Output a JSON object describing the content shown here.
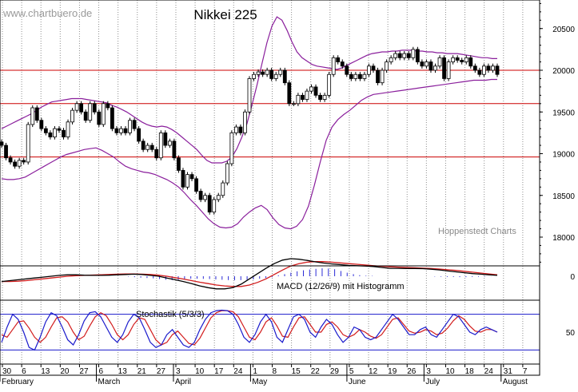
{
  "watermark": "www.chartbuero.de",
  "credit": "Hoppenstedt Charts",
  "chart_data": [
    {
      "type": "candlestick",
      "title": "Nikkei 225",
      "ylim": [
        17600,
        20900
      ],
      "yticks": [
        18000,
        18500,
        19000,
        19500,
        20000,
        20500
      ],
      "horizontal_lines": [
        20000,
        19600,
        18960
      ],
      "x_day_labels": [
        "30",
        "6",
        "13",
        "20",
        "27",
        "6",
        "13",
        "21",
        "27",
        "3",
        "10",
        "17",
        "24",
        "1",
        "8",
        "15",
        "22",
        "29",
        "5",
        "12",
        "19",
        "26",
        "3",
        "10",
        "18",
        "24",
        "31",
        "7"
      ],
      "x_month_labels": [
        "February",
        "March",
        "April",
        "May",
        "June",
        "July",
        "August"
      ],
      "series": [
        {
          "name": "Close",
          "values": [
            19100,
            18950,
            18900,
            18850,
            18920,
            18900,
            19350,
            19550,
            19400,
            19300,
            19250,
            19200,
            19300,
            19280,
            19200,
            19380,
            19520,
            19600,
            19500,
            19400,
            19600,
            19500,
            19350,
            19600,
            19550,
            19300,
            19250,
            19300,
            19250,
            19400,
            19300,
            19150,
            19050,
            19100,
            19050,
            18950,
            19250,
            19100,
            19150,
            18950,
            18800,
            18600,
            18750,
            18700,
            18550,
            18450,
            18500,
            18300,
            18450,
            18500,
            18650,
            18880,
            19250,
            19320,
            19250,
            19500,
            19900,
            19950,
            19980,
            19950,
            20000,
            19900,
            19950,
            20000,
            19850,
            19600,
            19600,
            19700,
            19650,
            19750,
            19800,
            19700,
            19650,
            19700,
            19950,
            20150,
            20100,
            20050,
            19950,
            19900,
            19950,
            19900,
            19950,
            20050,
            20000,
            19850,
            20000,
            20100,
            20150,
            20200,
            20150,
            20200,
            20150,
            20250,
            20100,
            20050,
            20100,
            20000,
            20050,
            20150,
            19900,
            20100,
            20150,
            20120,
            20100,
            20150,
            20050,
            20000,
            19950,
            20050,
            20000,
            20050,
            19950
          ]
        },
        {
          "name": "Bollinger upper",
          "values": [
            19300,
            19330,
            19360,
            19390,
            19420,
            19450,
            19480,
            19520,
            19560,
            19590,
            19620,
            19630,
            19640,
            19650,
            19660,
            19660,
            19660,
            19650,
            19640,
            19630,
            19620,
            19610,
            19580,
            19560,
            19530,
            19500,
            19460,
            19420,
            19380,
            19350,
            19330,
            19320,
            19330,
            19320,
            19290,
            19250,
            19200,
            19150,
            19100,
            19050,
            18980,
            18920,
            18890,
            18890,
            18890,
            18910,
            18960,
            19060,
            19200,
            19360,
            19580,
            19820,
            20080,
            20330,
            20530,
            20640,
            20600,
            20480,
            20340,
            20220,
            20150,
            20110,
            20070,
            20050,
            20040,
            20030,
            20020,
            20010,
            20030,
            20060,
            20090,
            20120,
            20150,
            20180,
            20200,
            20210,
            20220,
            20220,
            20230,
            20230,
            20240,
            20240,
            20240,
            20230,
            20230,
            20220,
            20220,
            20210,
            20210,
            20200,
            20200,
            20200,
            20190,
            20180,
            20170,
            20160,
            20150,
            20150,
            20140,
            20140
          ]
        },
        {
          "name": "Bollinger lower",
          "values": [
            18700,
            18690,
            18690,
            18700,
            18720,
            18760,
            18800,
            18840,
            18880,
            18920,
            18960,
            18990,
            19010,
            19030,
            19050,
            19060,
            19070,
            19040,
            19000,
            18960,
            18900,
            18850,
            18820,
            18800,
            18780,
            18770,
            18750,
            18720,
            18690,
            18650,
            18600,
            18530,
            18450,
            18380,
            18300,
            18220,
            18160,
            18120,
            18110,
            18120,
            18160,
            18240,
            18300,
            18350,
            18380,
            18330,
            18230,
            18150,
            18110,
            18100,
            18130,
            18210,
            18370,
            18620,
            18900,
            19160,
            19320,
            19410,
            19470,
            19520,
            19580,
            19640,
            19680,
            19710,
            19720,
            19730,
            19740,
            19750,
            19760,
            19770,
            19780,
            19790,
            19800,
            19810,
            19820,
            19830,
            19840,
            19850,
            19860,
            19870,
            19880,
            19880,
            19880,
            19890,
            19890
          ]
        },
        {
          "name": "MACD",
          "values": [
            -0.3,
            -0.25,
            -0.2,
            -0.15,
            -0.1,
            -0.05,
            0.0,
            0.05,
            0.08,
            0.08,
            0.06,
            0.05,
            0.05,
            0.06,
            0.08,
            0.1,
            0.12,
            0.1,
            0.05,
            0.0,
            -0.1,
            -0.2,
            -0.3,
            -0.42,
            -0.55,
            -0.65,
            -0.72,
            -0.72,
            -0.65,
            -0.45,
            -0.15,
            0.15,
            0.45,
            0.72,
            0.92,
            1.0,
            0.97,
            0.9,
            0.82,
            0.75,
            0.7,
            0.66,
            0.62,
            0.6,
            0.58,
            0.55,
            0.5,
            0.45,
            0.45,
            0.44,
            0.44,
            0.43,
            0.4,
            0.36,
            0.3,
            0.25,
            0.2,
            0.15,
            0.12,
            0.08,
            0.05
          ]
        },
        {
          "name": "MACD signal",
          "values": [
            -0.3,
            -0.3,
            -0.28,
            -0.25,
            -0.2,
            -0.15,
            -0.1,
            -0.05,
            0.0,
            0.03,
            0.05,
            0.07,
            0.08,
            0.1,
            0.12,
            0.13,
            0.13,
            0.12,
            0.1,
            0.06,
            0.0,
            -0.08,
            -0.16,
            -0.25,
            -0.34,
            -0.42,
            -0.5,
            -0.55,
            -0.58,
            -0.58,
            -0.5,
            -0.35,
            -0.15,
            0.1,
            0.35,
            0.58,
            0.72,
            0.8,
            0.83,
            0.83,
            0.8,
            0.76,
            0.72,
            0.68,
            0.64,
            0.6,
            0.57,
            0.54,
            0.52,
            0.5,
            0.48,
            0.46,
            0.44,
            0.41,
            0.37,
            0.33,
            0.28,
            0.23,
            0.18,
            0.13,
            0.08
          ]
        },
        {
          "name": "MACD histogram",
          "values": [
            0,
            0,
            0,
            0,
            0,
            0,
            0,
            0,
            0,
            0,
            0,
            0,
            0,
            0,
            0,
            0,
            0,
            0,
            0,
            0,
            -0.02,
            -0.05,
            -0.08,
            -0.1,
            -0.12,
            -0.16,
            -0.2,
            -0.22,
            -0.2,
            -0.17,
            -0.14,
            -0.14,
            -0.15,
            -0.16,
            -0.18,
            -0.2,
            -0.22,
            -0.23,
            -0.22,
            -0.2,
            -0.18,
            -0.14,
            -0.1,
            -0.05,
            0.05,
            0.12,
            0.2,
            0.28,
            0.34,
            0.38,
            0.42,
            0.45,
            0.44,
            0.4,
            0.3,
            0.2,
            0.12,
            0.06,
            0.03,
            0.02,
            0.0,
            0,
            0,
            0,
            0,
            0,
            0,
            0,
            0,
            -0.02,
            -0.03,
            -0.04,
            -0.04,
            -0.05,
            -0.05,
            -0.04,
            -0.03,
            -0.02,
            -0.01,
            0
          ]
        }
      ],
      "legend": "MACD (12/26/9) mit Histogramm",
      "stochastic": {
        "label": "Stochastik (5/3/3)",
        "ylim": [
          0,
          100
        ],
        "yticks": [
          50
        ],
        "reference_lines": [
          15,
          85
        ],
        "k": [
          30,
          60,
          85,
          75,
          50,
          20,
          15,
          40,
          70,
          88,
          82,
          60,
          35,
          25,
          45,
          72,
          88,
          90,
          80,
          60,
          40,
          30,
          45,
          70,
          85,
          78,
          55,
          30,
          20,
          25,
          45,
          55,
          40,
          25,
          20,
          30,
          55,
          75,
          88,
          92,
          93,
          92,
          85,
          65,
          40,
          30,
          45,
          70,
          85,
          70,
          40,
          30,
          55,
          80,
          85,
          75,
          50,
          40,
          60,
          75,
          65,
          45,
          30,
          40,
          60,
          55,
          40,
          35,
          40,
          55,
          70,
          85,
          75,
          60,
          45,
          45,
          55,
          60,
          45,
          40,
          55,
          70,
          85,
          80,
          65,
          50,
          45,
          55,
          60,
          55,
          50
        ],
        "d": [
          45,
          40,
          55,
          70,
          72,
          58,
          40,
          30,
          40,
          60,
          78,
          80,
          70,
          50,
          35,
          42,
          62,
          80,
          88,
          82,
          65,
          45,
          35,
          45,
          65,
          78,
          75,
          55,
          35,
          25,
          30,
          45,
          52,
          40,
          28,
          25,
          38,
          58,
          78,
          88,
          92,
          92,
          90,
          80,
          60,
          40,
          35,
          50,
          70,
          78,
          62,
          42,
          40,
          60,
          78,
          80,
          65,
          50,
          50,
          65,
          70,
          60,
          45,
          40,
          45,
          55,
          50,
          42,
          38,
          45,
          60,
          75,
          78,
          65,
          52,
          48,
          50,
          55,
          52,
          45,
          48,
          58,
          72,
          82,
          75,
          62,
          52,
          50,
          55,
          55,
          50
        ]
      }
    }
  ]
}
